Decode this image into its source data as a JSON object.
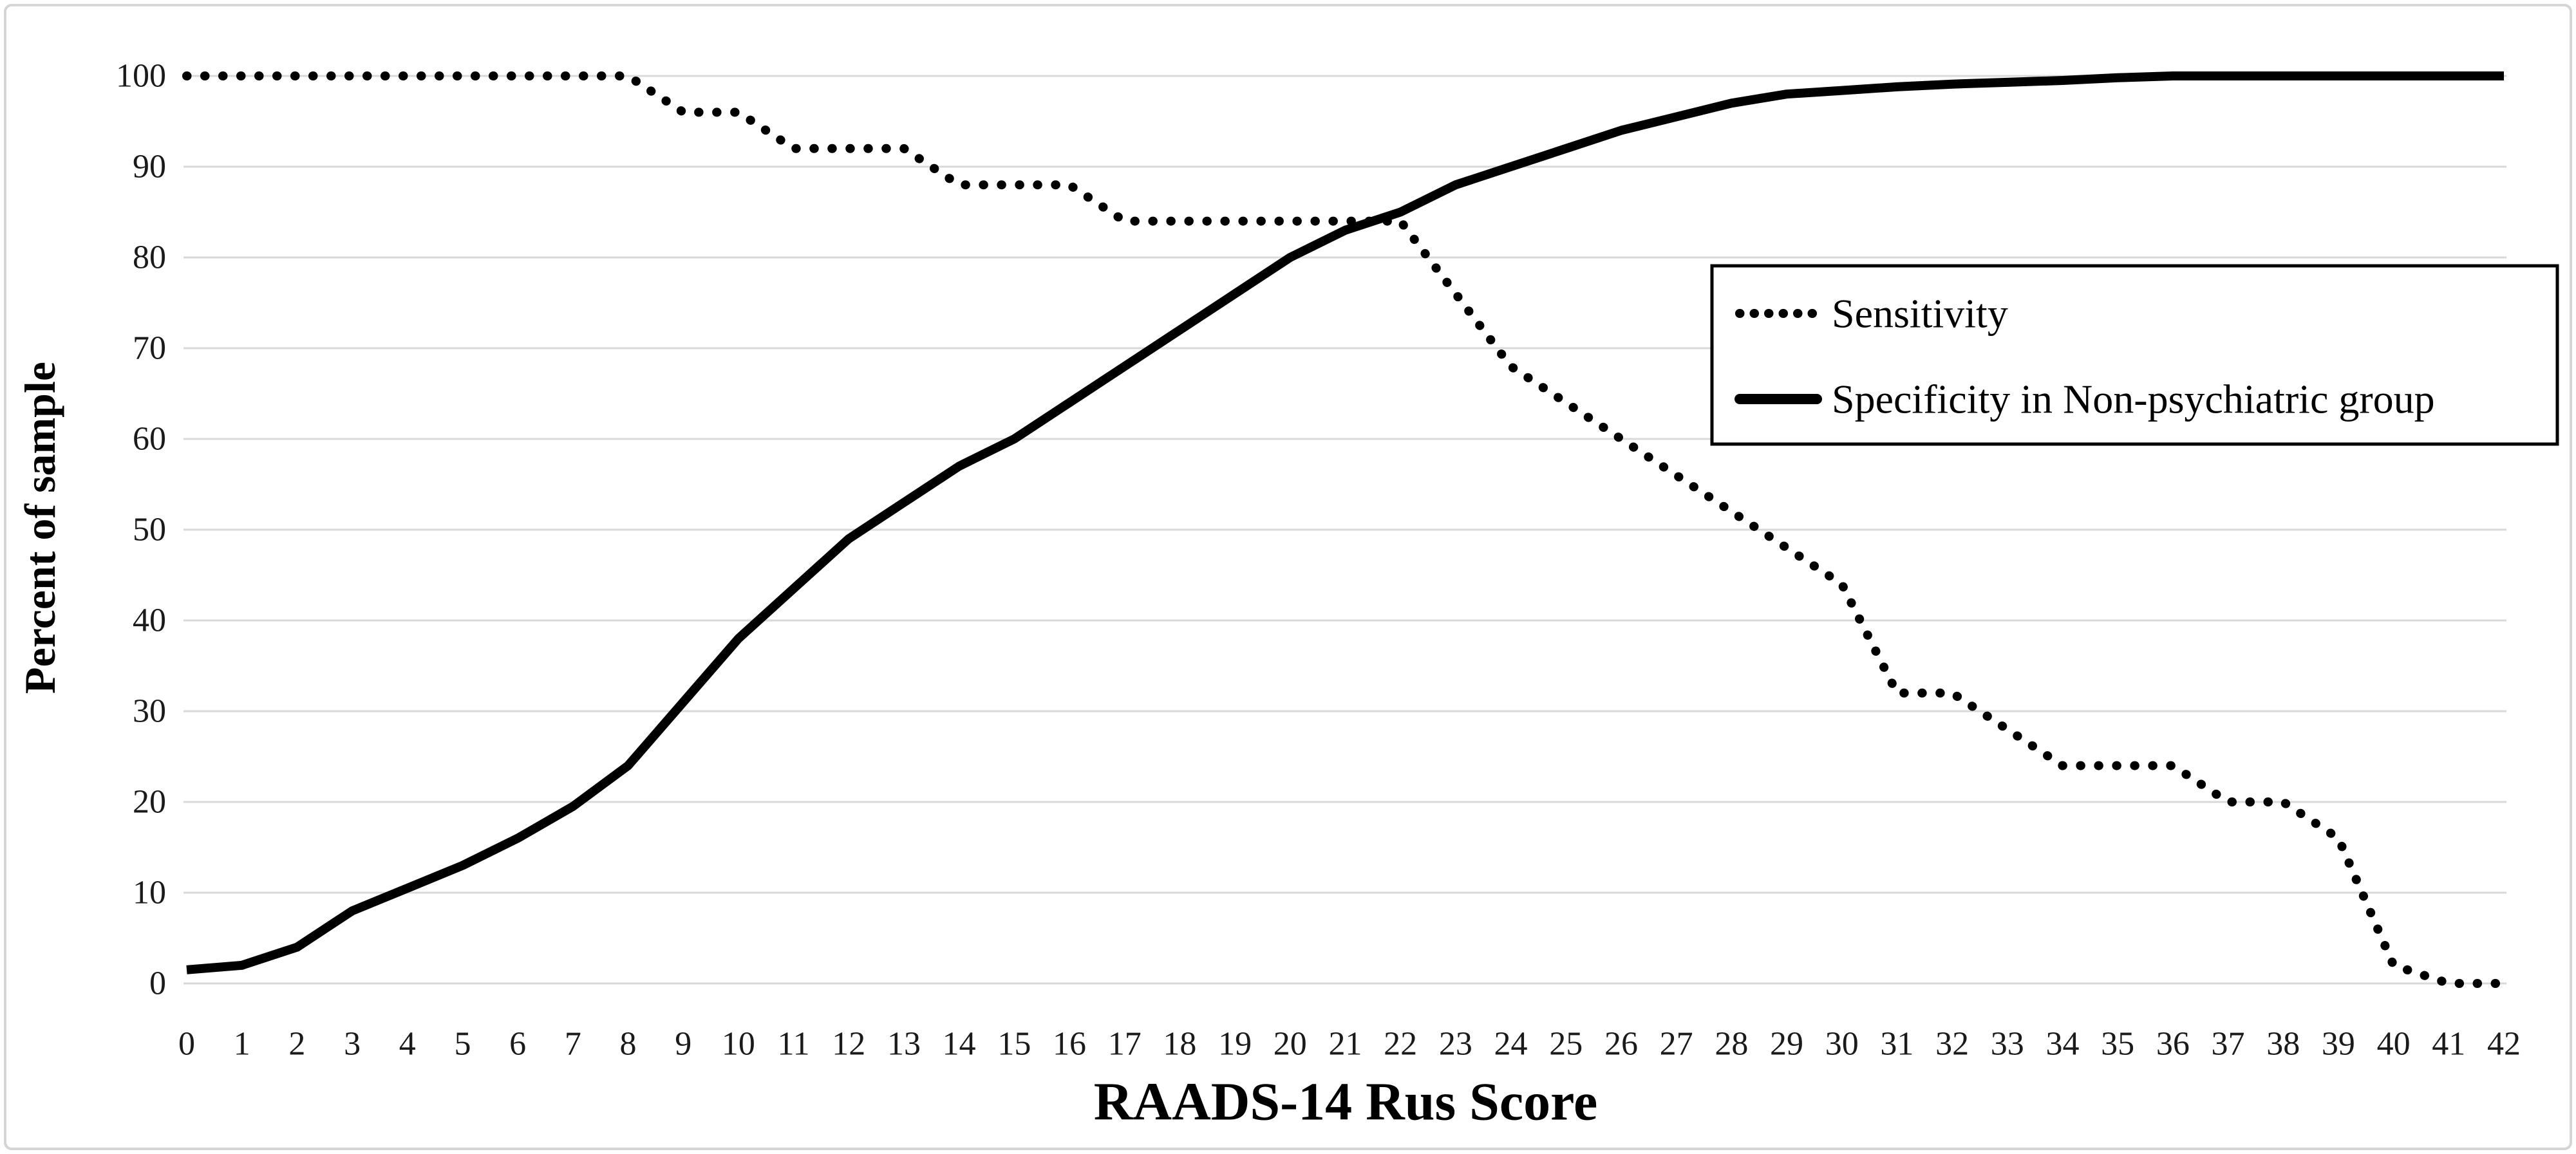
{
  "chart_data": {
    "type": "line",
    "title": "",
    "xlabel": "RAADS-14 Rus Score",
    "ylabel": "Percent of sample",
    "xlim": [
      0,
      42
    ],
    "ylim": [
      0,
      100
    ],
    "grid": "horizontal",
    "legend_position": "middle-right",
    "x": [
      0,
      1,
      2,
      3,
      4,
      5,
      6,
      7,
      8,
      9,
      10,
      11,
      12,
      13,
      14,
      15,
      16,
      17,
      18,
      19,
      20,
      21,
      22,
      23,
      24,
      25,
      26,
      27,
      28,
      29,
      30,
      31,
      32,
      33,
      34,
      35,
      36,
      37,
      38,
      39,
      40,
      41,
      42
    ],
    "xticks": [
      0,
      1,
      2,
      3,
      4,
      5,
      6,
      7,
      8,
      9,
      10,
      11,
      12,
      13,
      14,
      15,
      16,
      17,
      18,
      19,
      20,
      21,
      22,
      23,
      24,
      25,
      26,
      27,
      28,
      29,
      30,
      31,
      32,
      33,
      34,
      35,
      36,
      37,
      38,
      39,
      40,
      41,
      42
    ],
    "yticks": [
      0,
      10,
      20,
      30,
      40,
      50,
      60,
      70,
      80,
      90,
      100
    ],
    "series": [
      {
        "name": "Sensitivity",
        "line_style": "dotted",
        "values": [
          100,
          100,
          100,
          100,
          100,
          100,
          100,
          100,
          100,
          96,
          96,
          92,
          92,
          92,
          88,
          88,
          88,
          84,
          84,
          84,
          84,
          84,
          84,
          76,
          68,
          64,
          60,
          56,
          52,
          48,
          44,
          32,
          32,
          28,
          24,
          24,
          24,
          20,
          20,
          16,
          2,
          0,
          0
        ]
      },
      {
        "name": "Specificity in Non-psychiatric group",
        "line_style": "solid",
        "values": [
          1.5,
          2,
          4,
          8,
          10.5,
          13,
          16,
          19.5,
          24,
          31,
          38,
          43.5,
          49,
          53,
          57,
          60,
          64,
          68,
          72,
          76,
          80,
          83,
          85,
          88,
          90,
          92,
          94,
          95.5,
          97,
          98,
          98.4,
          98.8,
          99.1,
          99.3,
          99.5,
          99.8,
          100,
          100,
          100,
          100,
          100,
          100,
          100
        ]
      }
    ],
    "colors": {
      "line": "#000000",
      "grid": "#d9d9d9",
      "background": "#ffffff",
      "frame_border": "#d5d5d5",
      "legend_border": "#000000"
    }
  }
}
